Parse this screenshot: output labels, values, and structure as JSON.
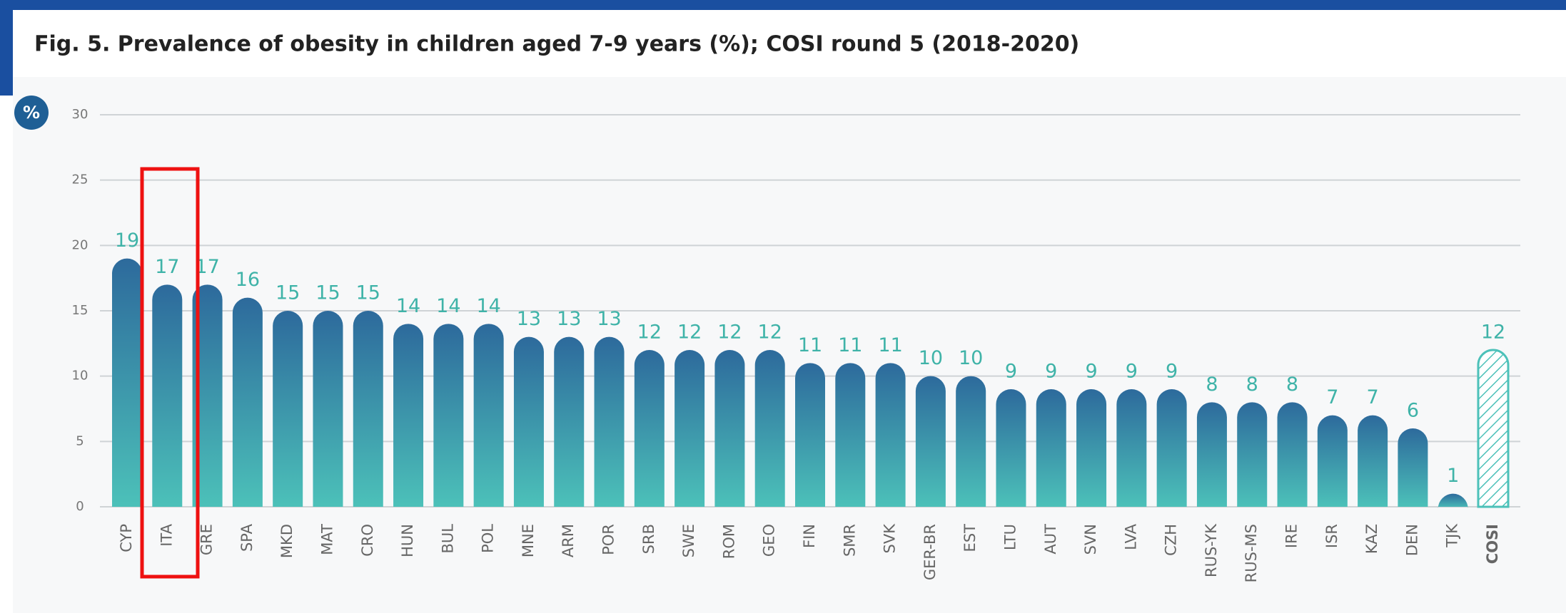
{
  "chart_data": {
    "type": "bar",
    "title": "Fig. 5. Prevalence of obesity in children aged 7-9 years (%); COSI round 5 (2018-2020)",
    "ylabel": "%",
    "categories": [
      "CYP",
      "ITA",
      "GRE",
      "SPA",
      "MKD",
      "MAT",
      "CRO",
      "HUN",
      "BUL",
      "POL",
      "MNE",
      "ARM",
      "POR",
      "SRB",
      "SWE",
      "ROM",
      "GEO",
      "FIN",
      "SMR",
      "SVK",
      "GER-BR",
      "EST",
      "LTU",
      "AUT",
      "SVN",
      "LVA",
      "CZH",
      "RUS-YK",
      "RUS-MS",
      "IRE",
      "ISR",
      "KAZ",
      "DEN",
      "TJK",
      "COSI"
    ],
    "values": [
      19,
      17,
      17,
      16,
      15,
      15,
      15,
      14,
      14,
      14,
      13,
      13,
      13,
      12,
      12,
      12,
      12,
      11,
      11,
      11,
      10,
      10,
      9,
      9,
      9,
      9,
      9,
      8,
      8,
      8,
      7,
      7,
      6,
      1,
      12
    ],
    "colors": [
      "#2d6a9c",
      "#4cc1b9"
    ],
    "label_color": "#3fb3a8",
    "ylim": [
      0,
      30
    ],
    "yticks": [
      0,
      5,
      10,
      15,
      20,
      25,
      30
    ],
    "grid": true
  }
}
